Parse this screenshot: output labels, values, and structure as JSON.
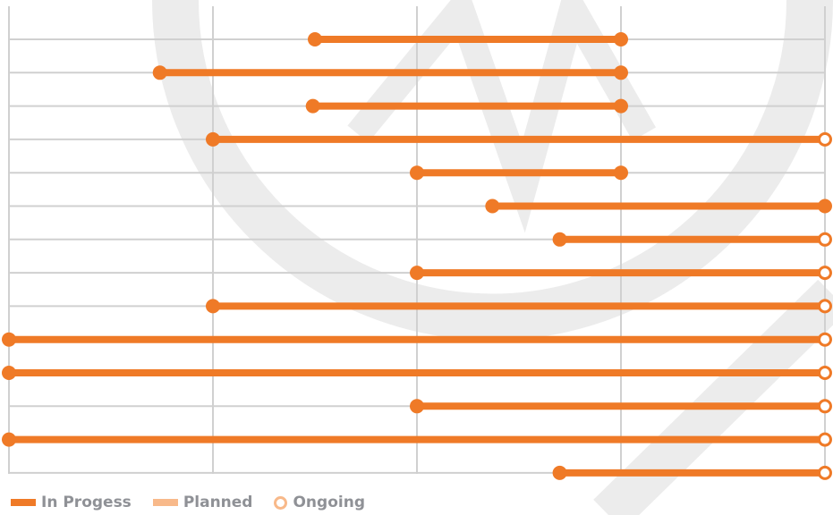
{
  "chart_data": {
    "type": "timeline",
    "x_grid_count": 5,
    "rows": [
      {
        "start": 1.5,
        "end": 3.0,
        "end_marker": "filled"
      },
      {
        "start": 0.74,
        "end": 3.0,
        "end_marker": "filled"
      },
      {
        "start": 1.49,
        "end": 3.0,
        "end_marker": "filled"
      },
      {
        "start": 1.0,
        "end": 4.0,
        "end_marker": "ring"
      },
      {
        "start": 2.0,
        "end": 3.0,
        "end_marker": "filled"
      },
      {
        "start": 2.37,
        "end": 4.0,
        "end_marker": "filled"
      },
      {
        "start": 2.7,
        "end": 4.0,
        "end_marker": "ring"
      },
      {
        "start": 2.0,
        "end": 4.0,
        "end_marker": "ring"
      },
      {
        "start": 1.0,
        "end": 4.0,
        "end_marker": "ring"
      },
      {
        "start": 0.0,
        "end": 4.0,
        "end_marker": "ring"
      },
      {
        "start": 0.0,
        "end": 4.0,
        "end_marker": "ring"
      },
      {
        "start": 2.0,
        "end": 4.0,
        "end_marker": "ring"
      },
      {
        "start": 0.0,
        "end": 4.0,
        "end_marker": "ring"
      },
      {
        "start": 2.7,
        "end": 4.0,
        "end_marker": "ring"
      }
    ],
    "colors": {
      "in_progress": "#ef7a27",
      "planned": "#f8b98a",
      "grid": "#d0d0d0",
      "watermark": "#ececec"
    },
    "grid": true,
    "legend_position": "bottom-left"
  },
  "legend": {
    "in_progress": "In Progess",
    "planned": "Planned",
    "ongoing": "Ongoing"
  }
}
